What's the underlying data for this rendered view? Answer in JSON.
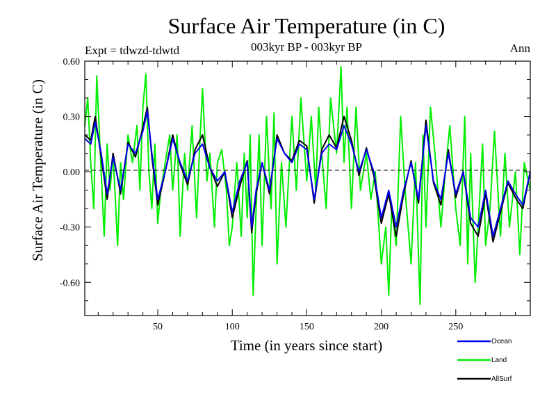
{
  "chart_data": {
    "type": "line",
    "title": "Surface Air Temperature (in C)",
    "subtitle": "003kyr BP - 003kyr BP",
    "left_label": "Expt = tdwzd-tdwtd",
    "right_label": "Ann",
    "xlabel": "Time (in years since start)",
    "ylabel": "Surface Air Temperature (in C)",
    "xlim": [
      1,
      300
    ],
    "ylim": [
      -0.78,
      0.6
    ],
    "xticks": [
      50,
      100,
      150,
      200,
      250
    ],
    "xtick_labels": [
      "50",
      "100",
      "150",
      "200",
      "250"
    ],
    "yticks": [
      0.6,
      0.3,
      0.0,
      -0.3,
      -0.6
    ],
    "ytick_labels": [
      "0.60",
      "0.30",
      "0.00",
      "-0.30",
      "-0.60"
    ],
    "zero_line": "dashed",
    "grid": false,
    "legend_position": "bottom-right, below plot",
    "series": [
      {
        "name": "Ocean",
        "color": "#0000ee",
        "x": [
          1,
          5,
          8,
          12,
          16,
          20,
          25,
          30,
          35,
          40,
          43,
          46,
          50,
          55,
          60,
          65,
          70,
          75,
          80,
          85,
          90,
          95,
          100,
          105,
          110,
          113,
          116,
          120,
          125,
          130,
          135,
          140,
          145,
          150,
          155,
          160,
          165,
          170,
          175,
          180,
          185,
          190,
          195,
          200,
          205,
          210,
          215,
          220,
          225,
          230,
          235,
          240,
          245,
          250,
          255,
          260,
          265,
          270,
          275,
          280,
          285,
          290,
          295,
          300
        ],
        "values": [
          0.18,
          0.15,
          0.27,
          0.1,
          -0.12,
          0.08,
          -0.1,
          0.15,
          0.1,
          0.22,
          0.33,
          0.1,
          -0.15,
          0.0,
          0.18,
          0.05,
          -0.05,
          0.1,
          0.15,
          0.02,
          -0.05,
          0.0,
          -0.22,
          -0.05,
          0.05,
          -0.3,
          -0.1,
          0.05,
          -0.1,
          0.18,
          0.1,
          0.05,
          0.15,
          0.12,
          -0.15,
          0.1,
          0.15,
          0.12,
          0.25,
          0.15,
          0.0,
          0.12,
          0.0,
          -0.25,
          -0.1,
          -0.3,
          -0.1,
          0.05,
          -0.15,
          0.25,
          -0.05,
          -0.15,
          0.1,
          -0.12,
          0.0,
          -0.25,
          -0.3,
          -0.1,
          -0.35,
          -0.2,
          -0.05,
          -0.12,
          -0.18,
          0.0
        ]
      },
      {
        "name": "Land",
        "color": "#00ee00",
        "x": [
          1,
          3,
          5,
          7,
          9,
          12,
          14,
          16,
          18,
          20,
          23,
          25,
          27,
          30,
          33,
          36,
          38,
          40,
          42,
          44,
          46,
          48,
          50,
          52,
          55,
          58,
          60,
          63,
          65,
          68,
          70,
          73,
          76,
          78,
          80,
          83,
          85,
          88,
          90,
          93,
          96,
          98,
          100,
          103,
          106,
          108,
          110,
          112,
          114,
          116,
          118,
          120,
          123,
          126,
          128,
          130,
          133,
          136,
          140,
          143,
          146,
          150,
          153,
          156,
          158,
          160,
          163,
          166,
          170,
          173,
          175,
          177,
          180,
          183,
          186,
          190,
          193,
          196,
          200,
          203,
          205,
          207,
          210,
          213,
          216,
          220,
          223,
          226,
          228,
          230,
          233,
          236,
          240,
          243,
          246,
          250,
          253,
          256,
          258,
          260,
          263,
          266,
          268,
          270,
          273,
          276,
          280,
          283,
          286,
          290,
          293,
          296,
          300
        ],
        "values": [
          0.25,
          0.4,
          0.05,
          -0.2,
          0.52,
          0.0,
          -0.35,
          0.15,
          -0.1,
          0.1,
          -0.4,
          0.05,
          -0.15,
          0.2,
          0.05,
          0.25,
          -0.1,
          0.35,
          0.53,
          0.0,
          -0.2,
          0.15,
          -0.28,
          -0.1,
          0.05,
          0.2,
          -0.1,
          0.2,
          -0.35,
          0.1,
          -0.1,
          0.25,
          -0.25,
          0.12,
          0.45,
          -0.05,
          0.1,
          -0.3,
          0.05,
          0.12,
          -0.1,
          -0.4,
          -0.3,
          0.05,
          -0.35,
          0.1,
          -0.25,
          0.2,
          -0.67,
          -0.2,
          0.2,
          -0.4,
          0.3,
          -0.2,
          0.32,
          -0.5,
          0.05,
          -0.3,
          0.3,
          -0.1,
          0.4,
          -0.05,
          0.3,
          -0.1,
          0.35,
          0.1,
          -0.2,
          0.4,
          0.1,
          0.57,
          0.05,
          0.35,
          -0.2,
          0.35,
          -0.1,
          0.1,
          -0.15,
          0.0,
          -0.5,
          -0.3,
          -0.67,
          -0.2,
          -0.4,
          0.3,
          -0.1,
          -0.5,
          0.05,
          -0.72,
          0.2,
          -0.3,
          0.35,
          0.1,
          -0.3,
          0.0,
          0.25,
          -0.2,
          -0.4,
          0.3,
          -0.5,
          0.1,
          -0.6,
          -0.15,
          0.15,
          -0.4,
          -0.2,
          0.22,
          -0.35,
          0.1,
          -0.3,
          0.0,
          -0.45,
          0.05,
          -0.1
        ]
      },
      {
        "name": "AllSurf",
        "color": "#000000",
        "x": [
          1,
          5,
          8,
          12,
          16,
          20,
          25,
          30,
          35,
          40,
          43,
          46,
          50,
          55,
          60,
          65,
          70,
          75,
          80,
          85,
          90,
          95,
          100,
          105,
          110,
          113,
          116,
          120,
          125,
          130,
          135,
          140,
          145,
          150,
          155,
          160,
          165,
          170,
          175,
          180,
          185,
          190,
          195,
          200,
          205,
          210,
          215,
          220,
          225,
          230,
          235,
          240,
          245,
          250,
          255,
          260,
          265,
          270,
          275,
          280,
          285,
          290,
          295,
          300
        ],
        "values": [
          0.2,
          0.17,
          0.3,
          0.08,
          -0.15,
          0.1,
          -0.12,
          0.16,
          0.08,
          0.24,
          0.35,
          0.08,
          -0.18,
          0.0,
          0.2,
          0.04,
          -0.07,
          0.12,
          0.2,
          0.02,
          -0.08,
          0.0,
          -0.25,
          -0.08,
          0.06,
          -0.33,
          -0.12,
          0.05,
          -0.12,
          0.2,
          0.1,
          0.06,
          0.17,
          0.14,
          -0.17,
          0.12,
          0.2,
          0.13,
          0.3,
          0.17,
          -0.02,
          0.13,
          -0.02,
          -0.28,
          -0.12,
          -0.35,
          -0.12,
          0.06,
          -0.17,
          0.28,
          -0.06,
          -0.18,
          0.12,
          -0.14,
          0.0,
          -0.28,
          -0.35,
          -0.12,
          -0.38,
          -0.22,
          -0.06,
          -0.14,
          -0.2,
          0.0
        ]
      }
    ]
  }
}
